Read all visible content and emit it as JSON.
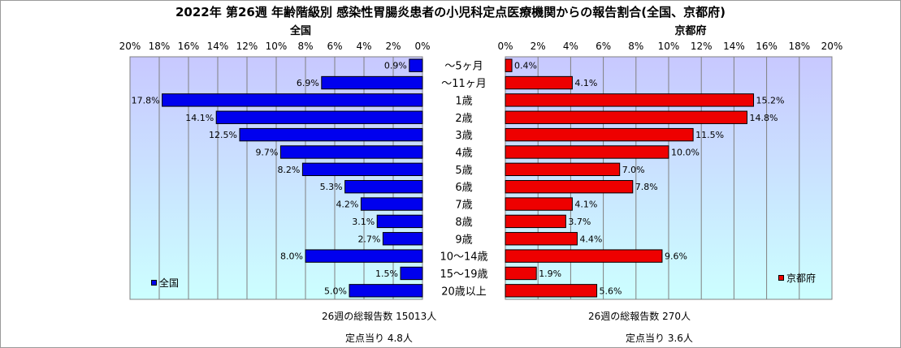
{
  "title": "2022年 第26週  年齢階級別 感染性胃腸炎患者の小児科定点医療機関からの報告割合(全国、京都府)",
  "colors": {
    "national": "#0000ee",
    "kyoto": "#ee0000",
    "plot_bg_top": "#c8c8ff",
    "plot_bg_bottom": "#ccffff",
    "grid": "#808080"
  },
  "chart_data": [
    {
      "type": "bar",
      "orientation": "horizontal",
      "direction": "reversed",
      "title": "全国",
      "legend": {
        "label": "全国",
        "placement": "bottom-left"
      },
      "xlim": [
        0,
        20
      ],
      "x_ticks": [
        "20%",
        "18%",
        "16%",
        "14%",
        "12%",
        "10%",
        "8%",
        "6%",
        "4%",
        "2%",
        "0%"
      ],
      "grid": true,
      "categories": [
        "～5ヶ月",
        "～11ヶ月",
        "1歳",
        "2歳",
        "3歳",
        "4歳",
        "5歳",
        "6歳",
        "7歳",
        "8歳",
        "9歳",
        "10～14歳",
        "15～19歳",
        "20歳以上"
      ],
      "series": [
        {
          "name": "全国",
          "values": [
            0.9,
            6.9,
            17.8,
            14.1,
            12.5,
            9.7,
            8.2,
            5.3,
            4.2,
            3.1,
            2.7,
            8.0,
            1.5,
            5.0
          ],
          "labels": [
            "0.9%",
            "6.9%",
            "17.8%",
            "14.1%",
            "12.5%",
            "9.7%",
            "8.2%",
            "5.3%",
            "4.2%",
            "3.1%",
            "2.7%",
            "8.0%",
            "1.5%",
            "5.0%"
          ]
        }
      ]
    },
    {
      "type": "bar",
      "orientation": "horizontal",
      "title": "京都府",
      "legend": {
        "label": "京都府",
        "placement": "bottom-right"
      },
      "xlim": [
        0,
        20
      ],
      "x_ticks": [
        "0%",
        "2%",
        "4%",
        "6%",
        "8%",
        "10%",
        "12%",
        "14%",
        "16%",
        "18%",
        "20%"
      ],
      "grid": true,
      "categories": [
        "～5ヶ月",
        "～11ヶ月",
        "1歳",
        "2歳",
        "3歳",
        "4歳",
        "5歳",
        "6歳",
        "7歳",
        "8歳",
        "9歳",
        "10～14歳",
        "15～19歳",
        "20歳以上"
      ],
      "series": [
        {
          "name": "京都府",
          "values": [
            0.4,
            4.1,
            15.2,
            14.8,
            11.5,
            10.0,
            7.0,
            7.8,
            4.1,
            3.7,
            4.4,
            9.6,
            1.9,
            5.6
          ],
          "labels": [
            "0.4%",
            "4.1%",
            "15.2%",
            "14.8%",
            "11.5%",
            "10.0%",
            "7.0%",
            "7.8%",
            "4.1%",
            "3.7%",
            "4.4%",
            "9.6%",
            "1.9%",
            "5.6%"
          ]
        }
      ]
    }
  ],
  "footer": {
    "national_total": "26週の総報告数  15013人",
    "national_per_site": "定点当り   4.8人",
    "kyoto_total": "26週の総報告数     270人",
    "kyoto_per_site": "定点当り    3.6人"
  }
}
